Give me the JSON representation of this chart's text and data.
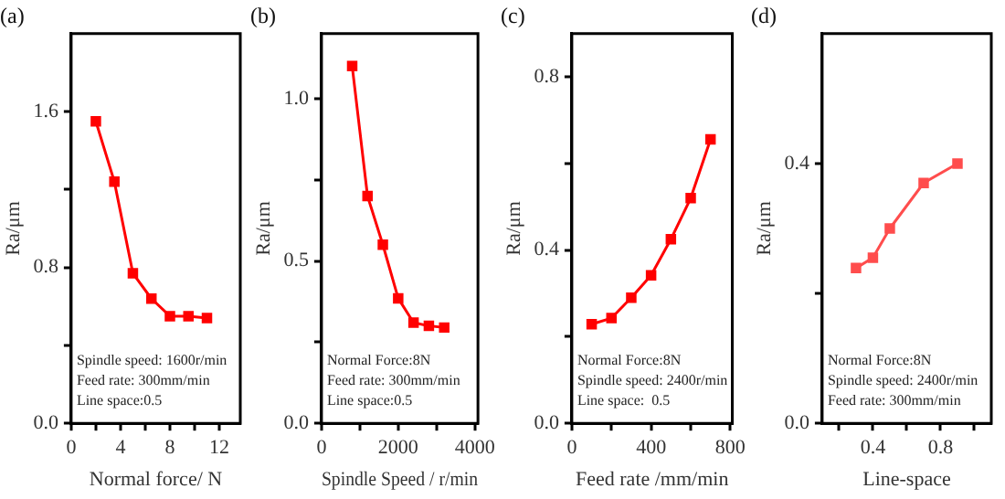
{
  "chart_data": [
    {
      "type": "line",
      "title": "(a)",
      "xlabel": "Normal force/ N",
      "ylabel": "Ra/μm",
      "x": [
        2,
        3.5,
        5,
        6.5,
        8,
        9.5,
        11
      ],
      "series": [
        {
          "color": "#ff0000",
          "values": [
            1.55,
            1.24,
            0.77,
            0.64,
            0.55,
            0.55,
            0.54
          ]
        }
      ],
      "xlim": [
        0,
        13.7
      ],
      "ylim": [
        0,
        2
      ],
      "xticks": [
        0,
        {
          "value": 2,
          "label": null
        },
        4,
        {
          "value": 6,
          "label": null
        },
        8,
        {
          "value": 10,
          "label": null
        },
        12
      ],
      "yticks": [
        {
          "value": 0,
          "label": "0.0"
        },
        {
          "value": 0.4,
          "label": null
        },
        0.8,
        {
          "value": 1.2,
          "label": null
        },
        1.6
      ],
      "annotations": [
        "Spindle speed: 1600r/min",
        "Feed rate: 300mm/min",
        "Line space:0.5"
      ],
      "grid": false,
      "legend": false,
      "marker": "square",
      "line_style": "solid"
    },
    {
      "type": "line",
      "title": "(b)",
      "xlabel": "Spindle Speed / r/min",
      "ylabel": "Ra/μm",
      "x": [
        800,
        1200,
        1600,
        2000,
        2400,
        2800,
        3200
      ],
      "series": [
        {
          "color": "#ff0000",
          "values": [
            1.1,
            0.7,
            0.55,
            0.385,
            0.31,
            0.3,
            0.295
          ]
        }
      ],
      "xlim": [
        0,
        4080
      ],
      "ylim": [
        0,
        1.2
      ],
      "xticks": [
        0,
        {
          "value": 1000,
          "label": null
        },
        2000,
        {
          "value": 3000,
          "label": null
        },
        4000
      ],
      "yticks": [
        {
          "value": 0,
          "label": "0.0"
        },
        {
          "value": 0.25,
          "label": null
        },
        {
          "value": 0.5,
          "label": "0.5"
        },
        {
          "value": 0.75,
          "label": null
        },
        {
          "value": 1,
          "label": "1.0"
        }
      ],
      "annotations": [
        "Normal Force:8N",
        "Feed rate: 300mm/min",
        "Line space:0.5"
      ],
      "grid": false,
      "legend": false,
      "marker": "square",
      "line_style": "solid"
    },
    {
      "type": "line",
      "title": "(c)",
      "xlabel": "Feed rate /mm/min",
      "ylabel": "Ra/μm",
      "x": [
        100,
        200,
        300,
        400,
        500,
        600,
        700
      ],
      "series": [
        {
          "color": "#ff0000",
          "values": [
            0.229,
            0.243,
            0.29,
            0.342,
            0.425,
            0.52,
            0.656
          ]
        }
      ],
      "xlim": [
        0,
        810
      ],
      "ylim": [
        0,
        0.9
      ],
      "xticks": [
        0,
        {
          "value": 200,
          "label": null
        },
        400,
        {
          "value": 600,
          "label": null
        },
        800
      ],
      "yticks": [
        {
          "value": 0,
          "label": "0.0"
        },
        {
          "value": 0.2,
          "label": null
        },
        0.4,
        {
          "value": 0.6,
          "label": null
        },
        0.8
      ],
      "annotations": [
        "Normal Force:8N",
        "Spindle speed: 2400r/min",
        "Line space:  0.5"
      ],
      "grid": false,
      "legend": false,
      "marker": "square",
      "line_style": "solid"
    },
    {
      "type": "line",
      "title": "(d)",
      "xlabel": "Line-space",
      "ylabel": "Ra/μm",
      "x": [
        0.3,
        0.4,
        0.5,
        0.7,
        0.9
      ],
      "series": [
        {
          "color": "#ff4d4d",
          "values": [
            0.239,
            0.255,
            0.3,
            0.37,
            0.4
          ]
        }
      ],
      "xlim": [
        0.1,
        1.1
      ],
      "ylim": [
        0,
        0.6
      ],
      "xticks": [
        {
          "value": 0.2,
          "label": null
        },
        0.4,
        {
          "value": 0.6,
          "label": null
        },
        0.8,
        {
          "value": 1,
          "label": null
        }
      ],
      "yticks": [
        {
          "value": 0,
          "label": "0.0"
        },
        {
          "value": 0.2,
          "label": null
        },
        0.4
      ],
      "annotations": [
        "Normal Force:8N",
        "Spindle speed: 2400r/min",
        "Feed rate: 300mm/min"
      ],
      "grid": false,
      "legend": false,
      "marker": "square",
      "line_style": "solid"
    }
  ]
}
